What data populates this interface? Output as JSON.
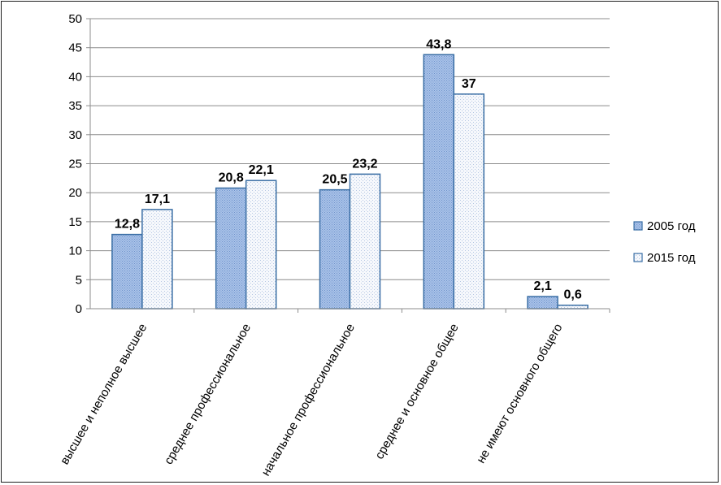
{
  "chart_data": {
    "type": "bar",
    "categories": [
      "высшее и неполное высшее",
      "среднее профессиональное",
      "начальное профессиональное",
      "среднее и основное общее",
      "не имеют основного общего"
    ],
    "series": [
      {
        "name": "2005 год",
        "values": [
          12.8,
          20.8,
          20.5,
          43.8,
          2.1
        ],
        "labels": [
          "12,8",
          "20,8",
          "20,5",
          "43,8",
          "2,1"
        ],
        "color": "#9db8e2"
      },
      {
        "name": "2015 год",
        "values": [
          17.1,
          22.1,
          23.2,
          37,
          0.6
        ],
        "labels": [
          "17,1",
          "22,1",
          "23,2",
          "37",
          "0,6"
        ],
        "color": "#f4f7fb"
      }
    ],
    "ylim": [
      0,
      50
    ],
    "yticks": [
      "0",
      "5",
      "10",
      "15",
      "20",
      "25",
      "30",
      "35",
      "40",
      "45",
      "50"
    ],
    "grid": true,
    "legend_position": "right",
    "bar_border_color": "#3a6ea5"
  }
}
